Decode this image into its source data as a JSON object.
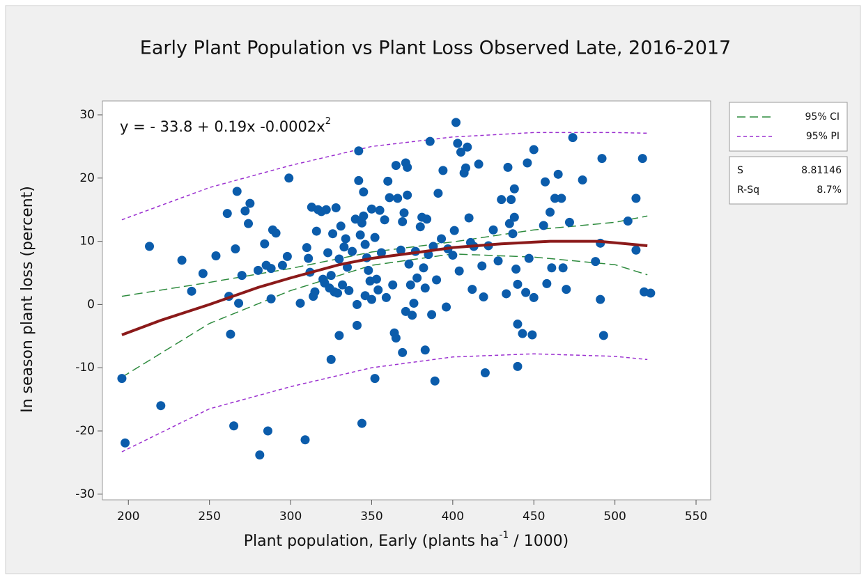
{
  "chart_data": {
    "type": "scatter",
    "title": "Early Plant Population vs Plant Loss Observed Late, 2016-2017",
    "xlabel_parts": [
      "Plant population, Early  (plants ha",
      "-1",
      " / 1000)"
    ],
    "ylabel": "In season plant loss (percent)",
    "equation": "y = - 33.8 + 0.19x -0.0002x",
    "equation_superscript": "2",
    "xlim": [
      184,
      559
    ],
    "ylim": [
      -30.9,
      32.2
    ],
    "xticks": [
      200,
      250,
      300,
      350,
      400,
      450,
      500,
      550
    ],
    "yticks": [
      -30,
      -20,
      -10,
      0,
      10,
      20,
      30
    ],
    "color": "#0b5cab",
    "x": [
      196,
      198,
      213,
      220,
      233,
      239,
      246,
      254,
      261,
      262,
      263,
      265,
      266,
      267,
      268,
      270,
      272,
      274,
      275,
      280,
      281,
      284,
      285,
      286,
      288,
      288,
      289,
      291,
      295,
      298,
      299,
      306,
      309,
      310,
      311,
      312,
      313,
      314,
      315,
      316,
      317,
      319,
      320,
      321,
      322,
      323,
      324,
      325,
      325,
      326,
      327,
      328,
      329,
      330,
      330,
      331,
      332,
      333,
      334,
      335,
      336,
      338,
      340,
      341,
      341,
      342,
      342,
      343,
      344,
      344,
      345,
      345,
      346,
      346,
      347,
      348,
      349,
      350,
      350,
      352,
      352,
      353,
      354,
      355,
      356,
      358,
      359,
      360,
      361,
      363,
      364,
      365,
      365,
      366,
      368,
      369,
      369,
      370,
      371,
      371,
      372,
      372,
      373,
      374,
      375,
      376,
      377,
      378,
      380,
      381,
      382,
      383,
      383,
      384,
      385,
      386,
      387,
      388,
      389,
      390,
      391,
      393,
      394,
      396,
      397,
      400,
      401,
      402,
      403,
      404,
      405,
      407,
      408,
      409,
      410,
      411,
      412,
      413,
      416,
      418,
      419,
      420,
      422,
      425,
      428,
      430,
      433,
      434,
      435,
      436,
      437,
      438,
      438,
      439,
      440,
      440,
      440,
      443,
      445,
      446,
      447,
      449,
      450,
      450,
      456,
      457,
      458,
      460,
      461,
      463,
      465,
      467,
      468,
      470,
      472,
      474,
      480,
      488,
      491,
      491,
      492,
      493,
      508,
      513,
      513,
      517,
      518,
      522
    ],
    "values": [
      -11.7,
      -21.9,
      9.2,
      -16,
      7,
      2.1,
      4.9,
      7.7,
      14.4,
      1.3,
      -4.7,
      -19.2,
      8.8,
      17.9,
      0.2,
      4.6,
      14.8,
      12.8,
      16,
      5.4,
      -23.8,
      9.6,
      6.2,
      -20,
      5.7,
      0.9,
      11.8,
      11.3,
      6.2,
      7.6,
      20,
      0.2,
      -21.4,
      9,
      7.3,
      5.1,
      15.4,
      1.3,
      2,
      11.6,
      15,
      14.7,
      4,
      3.4,
      15,
      8.2,
      2.6,
      -8.7,
      4.6,
      11.2,
      2,
      15.3,
      1.8,
      -4.9,
      7.2,
      12.4,
      3.1,
      9.1,
      10.4,
      5.9,
      2.2,
      8.4,
      13.5,
      -3.3,
      0,
      24.3,
      19.6,
      11,
      12.9,
      -18.8,
      17.8,
      14,
      9.5,
      1.4,
      7.4,
      5.4,
      3.7,
      15.1,
      0.8,
      -11.7,
      10.6,
      4,
      2.3,
      14.9,
      8.2,
      13.4,
      1.1,
      19.5,
      16.9,
      3.1,
      -4.5,
      -5.3,
      22,
      16.8,
      8.6,
      -7.6,
      13.1,
      14.5,
      -1.1,
      22.4,
      21.7,
      17.3,
      6.4,
      3.1,
      -1.7,
      0.2,
      8.4,
      4.2,
      12.3,
      13.8,
      5.8,
      -7.2,
      2.6,
      13.5,
      7.9,
      25.8,
      -1.6,
      9.2,
      -12.1,
      3.9,
      17.6,
      10.4,
      21.2,
      -0.4,
      8.8,
      7.8,
      11.7,
      28.8,
      25.5,
      5.3,
      24.1,
      20.8,
      21.6,
      24.9,
      13.7,
      9.8,
      2.4,
      9.2,
      22.2,
      6.1,
      1.2,
      -10.8,
      9.3,
      11.8,
      6.9,
      16.6,
      1.7,
      21.7,
      12.8,
      16.6,
      11.2,
      18.3,
      13.8,
      5.6,
      3.2,
      -9.8,
      -3.1,
      -4.6,
      1.9,
      22.4,
      7.3,
      -4.8,
      24.5,
      1.1,
      12.5,
      19.4,
      3.3,
      14.6,
      5.8,
      16.8,
      20.6,
      16.8,
      5.8,
      2.4,
      13,
      26.4,
      19.7,
      6.8,
      9.7,
      0.8,
      23.1,
      -4.9,
      13.2,
      8.6,
      16.8,
      23.1,
      2,
      1.8
    ],
    "fit_line": {
      "color": "#8b1a1a",
      "x": [
        196,
        220,
        250,
        280,
        300,
        330,
        350,
        380,
        400,
        430,
        460,
        490,
        520
      ],
      "values": [
        -4.8,
        -2.5,
        0,
        2.7,
        4.2,
        6.3,
        7.3,
        8.3,
        9.0,
        9.6,
        10,
        10,
        9.3
      ]
    },
    "bands": [
      {
        "name": "95% CI",
        "color": "#2e8b3e",
        "dash": "12,6",
        "x": [
          196,
          250,
          300,
          350,
          400,
          450,
          500,
          520
        ],
        "upper": [
          1.3,
          3.5,
          5.7,
          8.3,
          9.9,
          11.8,
          13,
          14
        ],
        "lower": [
          -11.5,
          -3,
          2.2,
          6.2,
          8.0,
          7.5,
          6.3,
          4.7
        ]
      },
      {
        "name": "95% PI",
        "color": "#9b30d0",
        "dash": "5,4",
        "x": [
          196,
          250,
          300,
          350,
          400,
          450,
          500,
          520
        ],
        "upper": [
          13.4,
          18.5,
          22,
          25,
          26.5,
          27.2,
          27.2,
          27.1
        ],
        "lower": [
          -23.3,
          -16.5,
          -13,
          -10,
          -8.3,
          -7.8,
          -8.2,
          -8.7
        ]
      }
    ],
    "stats": [
      {
        "label": "S",
        "value": "8.81146"
      },
      {
        "label": "R-Sq",
        "value": "8.7%"
      }
    ]
  }
}
